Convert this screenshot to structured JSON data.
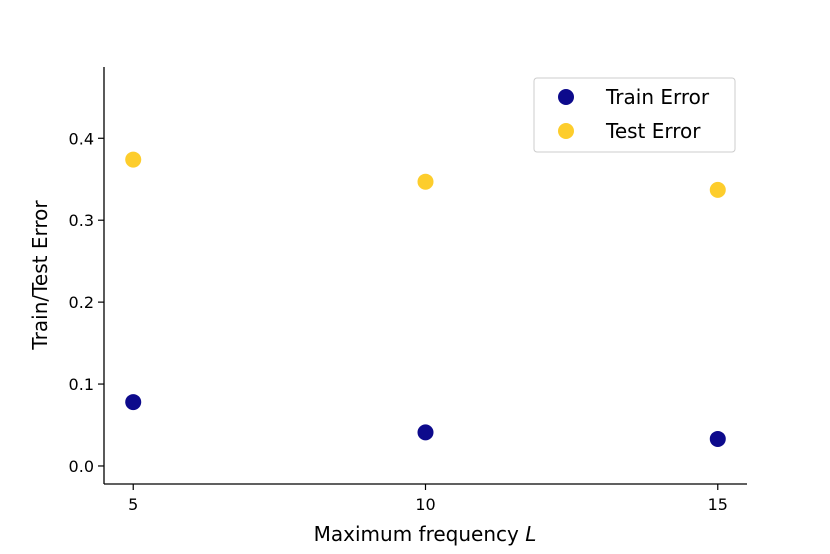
{
  "chart_data": {
    "type": "scatter",
    "x": [
      5,
      10,
      15
    ],
    "series": [
      {
        "name": "Train Error",
        "color": "#0d0a8c",
        "values": [
          0.078,
          0.041,
          0.033
        ]
      },
      {
        "name": "Test Error",
        "color": "#fdcd2c",
        "values": [
          0.374,
          0.347,
          0.337
        ]
      }
    ],
    "title": "",
    "xlabel": "Maximum frequency",
    "xlabel_var": "L",
    "ylabel": "Train/Test Error",
    "xlim": [
      4.5,
      15.5
    ],
    "ylim": [
      -0.022,
      0.487
    ],
    "xticks": [
      "5",
      "10",
      "15"
    ],
    "xtick_values": [
      5,
      10,
      15
    ],
    "yticks": [
      "0.0",
      "0.1",
      "0.2",
      "0.3",
      "0.4"
    ],
    "ytick_values": [
      0.0,
      0.1,
      0.2,
      0.3,
      0.4
    ],
    "grid": false,
    "legend_position": "top-right",
    "spines": [
      "left",
      "bottom"
    ]
  }
}
